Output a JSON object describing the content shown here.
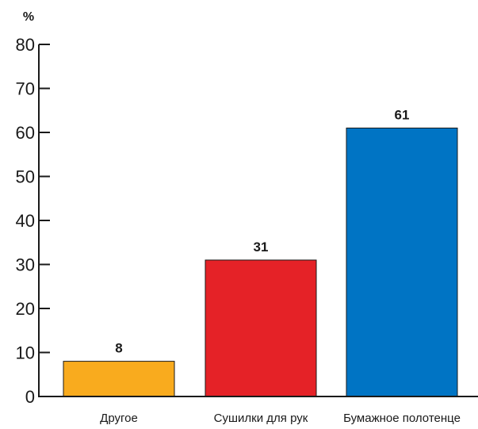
{
  "chart_data": {
    "type": "bar",
    "unit_label": "%",
    "categories": [
      "Другое",
      "Сушилки для рук",
      "Бумажное полотенце"
    ],
    "values": [
      8,
      31,
      61
    ],
    "value_labels": [
      "8",
      "31",
      "61"
    ],
    "colors": [
      "#f9ab1e",
      "#e52227",
      "#0074c4"
    ],
    "bar_outline_color": "#1a1a1a",
    "ylim": [
      0,
      80
    ],
    "yticks": [
      0,
      10,
      20,
      30,
      40,
      50,
      60,
      70,
      80
    ],
    "grid": false,
    "legend": "none"
  }
}
